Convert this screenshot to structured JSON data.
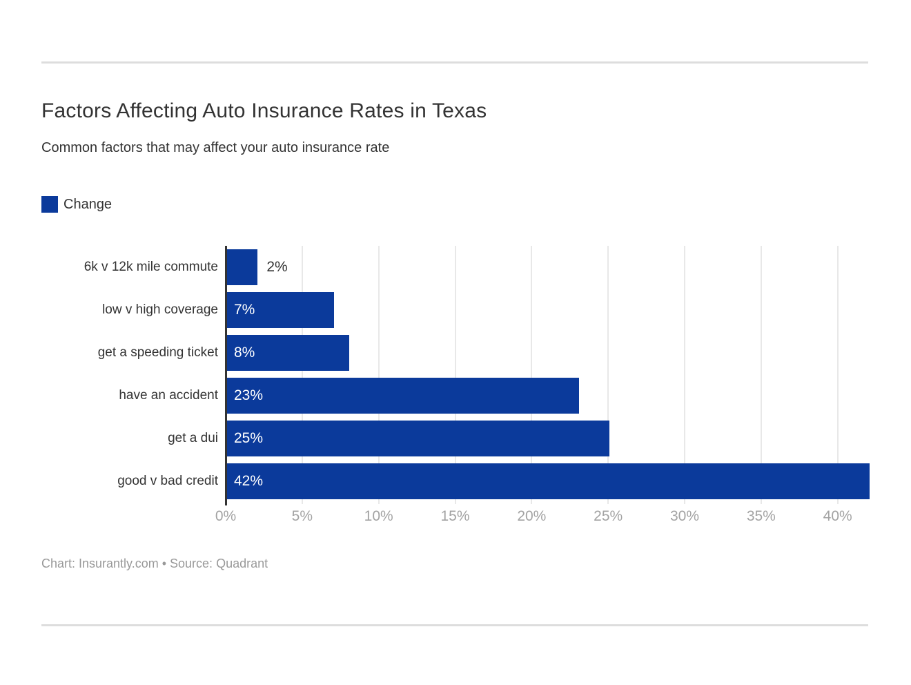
{
  "header": {
    "title": "Factors Affecting Auto Insurance Rates in Texas",
    "subtitle": "Common factors that may affect your auto insurance rate"
  },
  "legend": {
    "label": "Change",
    "color": "#0b3a9b"
  },
  "chart_data": {
    "type": "bar",
    "orientation": "horizontal",
    "title": "Factors Affecting Auto Insurance Rates in Texas",
    "subtitle": "Common factors that may affect your auto insurance rate",
    "categories": [
      "6k v 12k mile commute",
      "low v high coverage",
      "get a speeding ticket",
      "have an accident",
      "get a dui",
      "good v bad credit"
    ],
    "values": [
      2,
      7,
      8,
      23,
      25,
      42
    ],
    "value_labels": [
      "2%",
      "7%",
      "8%",
      "23%",
      "25%",
      "42%"
    ],
    "series_name": "Change",
    "bar_color": "#0b3a9b",
    "xlabel": "",
    "ylabel": "",
    "xlim": [
      0,
      42
    ],
    "x_tick_values": [
      0,
      5,
      10,
      15,
      20,
      25,
      30,
      35,
      40
    ],
    "x_tick_labels": [
      "0%",
      "5%",
      "10%",
      "15%",
      "20%",
      "25%",
      "30%",
      "35%",
      "40%"
    ],
    "grid": "vertical-only",
    "legend_position": "top-left"
  },
  "footer": {
    "text": "Chart: Insurantly.com • Source: Quadrant"
  },
  "colors": {
    "bar": "#0b3a9b",
    "text_dark": "#333333",
    "axis_tick_text": "#a3a3a3",
    "gridline": "#e8e8e8",
    "divider": "#dddddd",
    "footer_text": "#999999",
    "value_label_inside": "#ffffff"
  }
}
